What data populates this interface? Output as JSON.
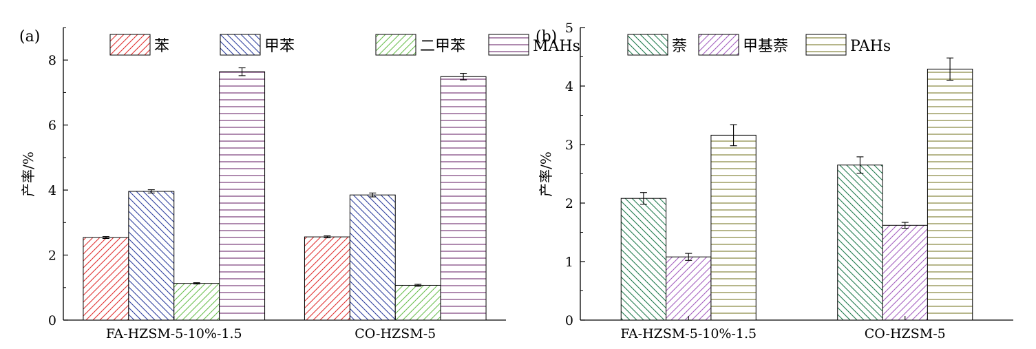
{
  "chart_data": [
    {
      "type": "bar",
      "panel_label": "(a)",
      "ylabel": "产率/%",
      "ylim": [
        0,
        9
      ],
      "yticks": [
        "0",
        "2",
        "4",
        "6",
        "8"
      ],
      "categories": [
        "FA-HZSM-5-10%-1.5",
        "CO-HZSM-5"
      ],
      "series": [
        {
          "name": "苯",
          "values": [
            2.54,
            2.56
          ],
          "errors": [
            0.03,
            0.03
          ],
          "color": "#e03030",
          "pattern": "diag-up"
        },
        {
          "name": "甲苯",
          "values": [
            3.96,
            3.85
          ],
          "errors": [
            0.05,
            0.06
          ],
          "color": "#2e3f9e",
          "pattern": "diag-down"
        },
        {
          "name": "二甲苯",
          "values": [
            1.13,
            1.07
          ],
          "errors": [
            0.02,
            0.03
          ],
          "color": "#6bbf4f",
          "pattern": "diag-up"
        },
        {
          "name": "MAHs",
          "values": [
            7.64,
            7.49
          ],
          "errors": [
            0.12,
            0.1
          ],
          "color": "#6e2a6e",
          "pattern": "horizontal"
        }
      ],
      "legend_position": "top"
    },
    {
      "type": "bar",
      "panel_label": "(b)",
      "ylabel": "产率/%",
      "ylim": [
        0,
        5
      ],
      "yticks": [
        "0",
        "1",
        "2",
        "3",
        "4",
        "5"
      ],
      "categories": [
        "FA-HZSM-5-10%-1.5",
        "CO-HZSM-5"
      ],
      "series": [
        {
          "name": "萘",
          "values": [
            2.08,
            2.65
          ],
          "errors": [
            0.1,
            0.14
          ],
          "color": "#1f7a4d",
          "pattern": "diag-down"
        },
        {
          "name": "甲基萘",
          "values": [
            1.08,
            1.62
          ],
          "errors": [
            0.06,
            0.05
          ],
          "color": "#a45fbf",
          "pattern": "diag-up"
        },
        {
          "name": "PAHs",
          "values": [
            3.16,
            4.29
          ],
          "errors": [
            0.18,
            0.19
          ],
          "color": "#7a7a2a",
          "pattern": "horizontal"
        }
      ],
      "legend_position": "top"
    }
  ]
}
